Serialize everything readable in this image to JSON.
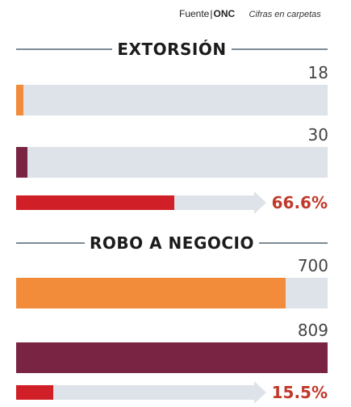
{
  "source": {
    "label": "Fuente",
    "org": "ONC",
    "note": "Cifras en carpetas"
  },
  "colors": {
    "bar_a": "#f28c3b",
    "bar_b": "#7a2444",
    "change": "#d01f26",
    "track": "#dde3e9"
  },
  "chart_data": [
    {
      "type": "bar",
      "title": "EXTORSIÓN",
      "axis_max": 810,
      "values": [
        18,
        30
      ],
      "value_labels": [
        "18",
        "30"
      ],
      "change_percent": 66.6,
      "change_label": "66.6%"
    },
    {
      "type": "bar",
      "title": "ROBO A NEGOCIO",
      "axis_max": 810,
      "values": [
        700,
        809
      ],
      "value_labels": [
        "700",
        "809"
      ],
      "change_percent": 15.5,
      "change_label": "15.5%"
    }
  ]
}
